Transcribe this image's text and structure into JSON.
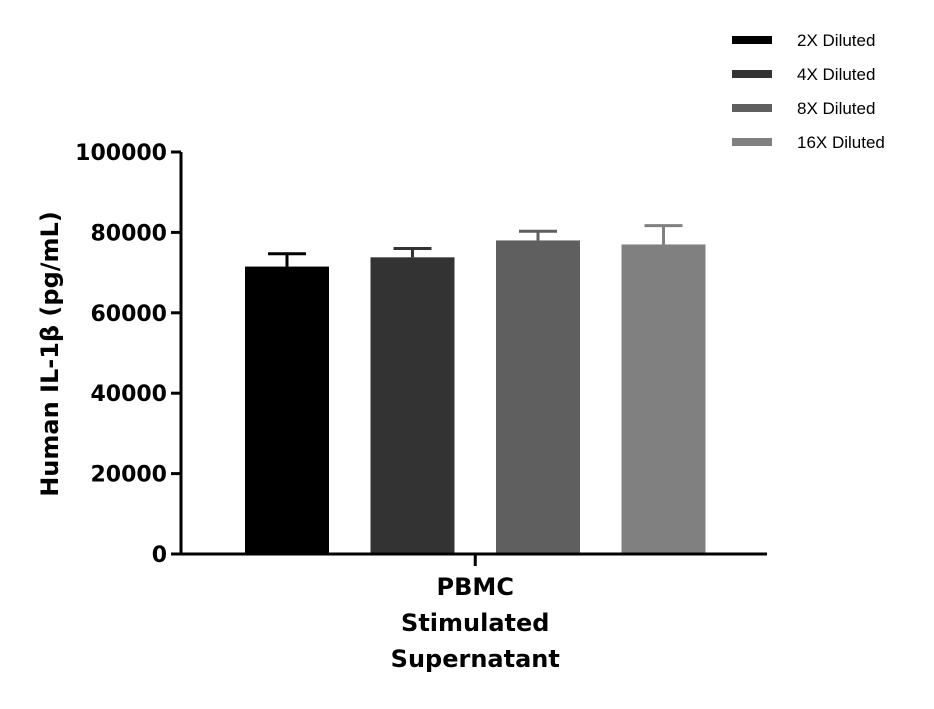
{
  "chart_data": {
    "type": "bar",
    "categories": [
      "PBMC Stimulated Supernatant"
    ],
    "category_lines": [
      "PBMC",
      "Stimulated",
      "Supernatant"
    ],
    "ylabel": "Human IL-1β (pg/mL)",
    "xlabel": "",
    "ylim": [
      0,
      100000
    ],
    "yticks": [
      0,
      20000,
      40000,
      60000,
      80000,
      100000
    ],
    "ytick_labels": [
      "0",
      "20000",
      "40000",
      "60000",
      "80000",
      "100000"
    ],
    "grid": false,
    "legend_position": "top-right",
    "series": [
      {
        "name": "2X Diluted",
        "values": [
          71500
        ],
        "error": [
          3200
        ],
        "color": "#000000"
      },
      {
        "name": "4X Diluted",
        "values": [
          73800
        ],
        "error": [
          2200
        ],
        "color": "#333333"
      },
      {
        "name": "8X Diluted",
        "values": [
          78000
        ],
        "error": [
          2300
        ],
        "color": "#5f5f5f"
      },
      {
        "name": "16X Diluted",
        "values": [
          77000
        ],
        "error": [
          4700
        ],
        "color": "#808080"
      }
    ]
  }
}
